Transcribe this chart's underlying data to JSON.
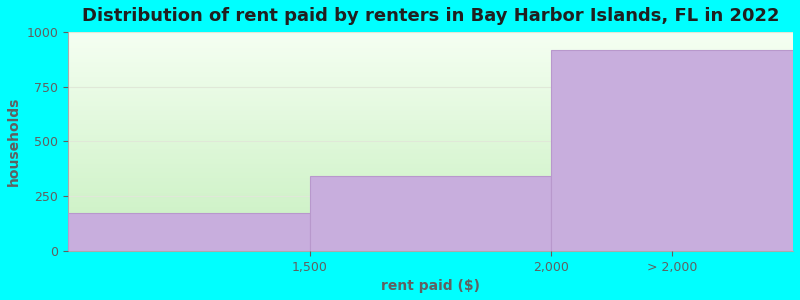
{
  "title": "Distribution of rent paid by renters in Bay Harbor Islands, FL in 2022",
  "xlabel": "rent paid ($)",
  "ylabel": "households",
  "bar_labels": [
    "1,500",
    "2,000",
    "> 2,000"
  ],
  "values": [
    175,
    340,
    920
  ],
  "bar_color": "#c8aedd",
  "bar_edge_color": "#b898cc",
  "ylim": [
    0,
    1000
  ],
  "yticks": [
    0,
    250,
    500,
    750,
    1000
  ],
  "xlim": [
    0,
    3
  ],
  "background_color": "#00ffff",
  "plot_bg_top": "#f5fff2",
  "plot_bg_bottom": "#c8f0c0",
  "title_fontsize": 13,
  "axis_label_fontsize": 10,
  "tick_fontsize": 9,
  "text_color": "#606060",
  "grid_color": "#e0e8d8"
}
